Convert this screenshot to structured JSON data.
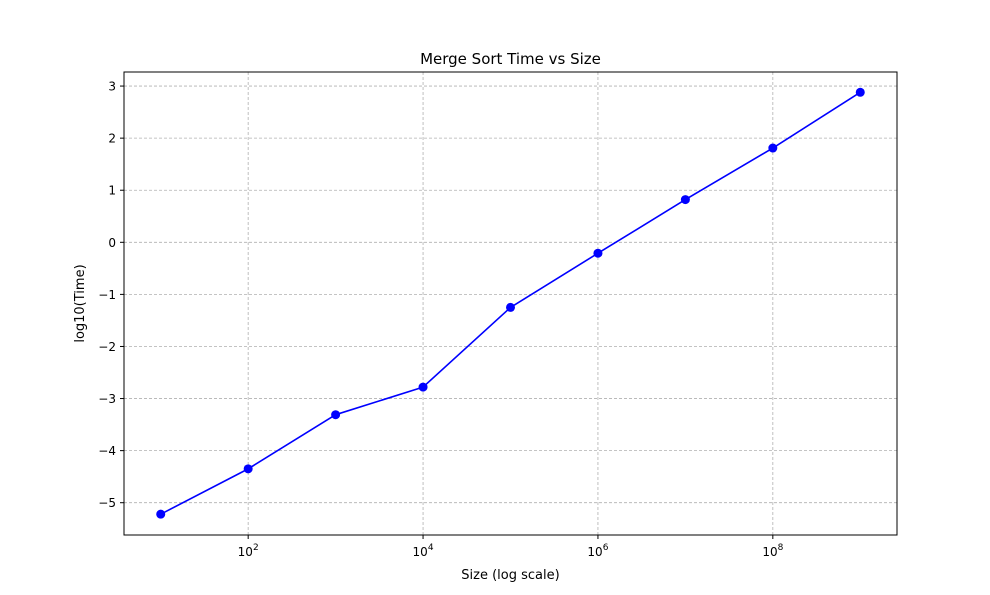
{
  "chart_data": {
    "type": "line",
    "title": "Merge Sort Time vs Size",
    "xlabel": "Size (log scale)",
    "ylabel": "log10(Time)",
    "x_scale": "log",
    "x": [
      10,
      100,
      1000,
      10000,
      100000,
      1000000,
      10000000,
      100000000,
      1000000000
    ],
    "series": [
      {
        "name": "Merge Sort",
        "color": "#0000ff",
        "marker": "circle",
        "values": [
          -5.22,
          -4.35,
          -3.31,
          -2.78,
          -1.25,
          -0.21,
          0.82,
          1.81,
          2.88
        ]
      }
    ],
    "xlim_log10": [
      0.58,
      9.42
    ],
    "ylim": [
      -5.62,
      3.27
    ],
    "x_ticks": [
      {
        "base": "10",
        "exp": "2",
        "value": 100
      },
      {
        "base": "10",
        "exp": "4",
        "value": 10000
      },
      {
        "base": "10",
        "exp": "6",
        "value": 1000000
      },
      {
        "base": "10",
        "exp": "8",
        "value": 100000000
      }
    ],
    "y_ticks": [
      {
        "label": "3",
        "value": 3
      },
      {
        "label": "2",
        "value": 2
      },
      {
        "label": "1",
        "value": 1
      },
      {
        "label": "0",
        "value": 0
      },
      {
        "label": "−1",
        "value": -1
      },
      {
        "label": "−2",
        "value": -2
      },
      {
        "label": "−3",
        "value": -3
      },
      {
        "label": "−4",
        "value": -4
      },
      {
        "label": "−5",
        "value": -5
      }
    ],
    "grid": true,
    "grid_color": "#b0b0b0"
  }
}
